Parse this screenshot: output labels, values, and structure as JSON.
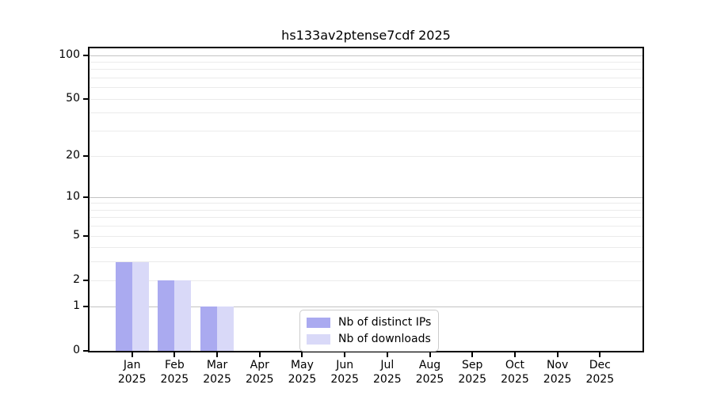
{
  "chart_data": {
    "type": "bar",
    "title": "hs133av2ptense7cdf 2025",
    "categories": [
      {
        "month": "Jan",
        "year": "2025"
      },
      {
        "month": "Feb",
        "year": "2025"
      },
      {
        "month": "Mar",
        "year": "2025"
      },
      {
        "month": "Apr",
        "year": "2025"
      },
      {
        "month": "May",
        "year": "2025"
      },
      {
        "month": "Jun",
        "year": "2025"
      },
      {
        "month": "Jul",
        "year": "2025"
      },
      {
        "month": "Aug",
        "year": "2025"
      },
      {
        "month": "Sep",
        "year": "2025"
      },
      {
        "month": "Oct",
        "year": "2025"
      },
      {
        "month": "Nov",
        "year": "2025"
      },
      {
        "month": "Dec",
        "year": "2025"
      }
    ],
    "series": [
      {
        "name": "Nb of distinct IPs",
        "color": "#aaaaf0",
        "values": [
          3,
          2,
          1,
          0,
          0,
          0,
          0,
          0,
          0,
          0,
          0,
          0
        ]
      },
      {
        "name": "Nb of downloads",
        "color": "#d9d9f8",
        "values": [
          3,
          2,
          1,
          0,
          0,
          0,
          0,
          0,
          0,
          0,
          0,
          0
        ]
      }
    ],
    "xlabel": "",
    "ylabel": "",
    "yscale": "log1p",
    "ylim": [
      0,
      112
    ],
    "yticks": [
      100,
      50,
      20,
      10,
      5,
      2,
      1,
      0
    ],
    "grid_major": [
      1,
      10,
      100
    ],
    "grid_minor": [
      2,
      3,
      4,
      5,
      6,
      7,
      8,
      9,
      20,
      30,
      40,
      50,
      60,
      70,
      80,
      90
    ],
    "grid": "on",
    "legend_position": "lower center"
  },
  "colors": {
    "spine": "#000000",
    "grid_major": "#c3c3c3",
    "grid_minor": "#ebebeb",
    "background": "#ffffff"
  }
}
